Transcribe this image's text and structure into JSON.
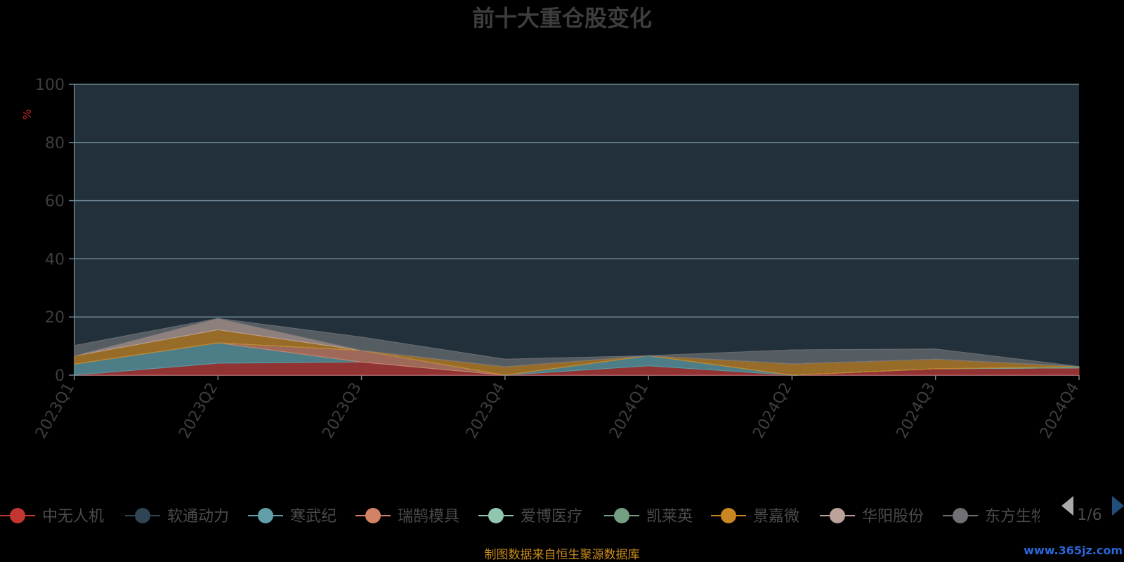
{
  "chart_data": {
    "type": "area",
    "title": "前十大重仓股变化",
    "ylabel": "%",
    "ylim": [
      0,
      100
    ],
    "yticks": [
      "0",
      "20",
      "40",
      "60",
      "80",
      "100"
    ],
    "categories": [
      "2023Q1",
      "2023Q2",
      "2023Q3",
      "2023Q4",
      "2024Q1",
      "2024Q2",
      "2024Q3",
      "2024Q4"
    ],
    "legend_position": "bottom",
    "legend_page": "1/6",
    "series": [
      {
        "name": "中无人机",
        "color": "#c23531",
        "values": [
          0,
          4.1,
          4.5,
          0,
          3.2,
          0,
          2.2,
          2.5
        ]
      },
      {
        "name": "软通动力",
        "color": "#2f4554",
        "values": [
          0,
          0,
          0,
          0,
          0,
          0,
          0,
          0
        ]
      },
      {
        "name": "寒武纪",
        "color": "#61a0a8",
        "values": [
          3.8,
          7.0,
          0,
          0,
          3.5,
          0,
          0,
          0
        ]
      },
      {
        "name": "瑞鹄模具",
        "color": "#d48265",
        "values": [
          0,
          0,
          4.0,
          0,
          0,
          0,
          0,
          0
        ]
      },
      {
        "name": "爱博医疗",
        "color": "#91c7ae",
        "values": [
          0,
          0,
          0,
          0,
          0,
          0,
          0,
          0
        ]
      },
      {
        "name": "凯莱英",
        "color": "#749f83",
        "values": [
          0,
          0,
          0,
          0,
          0,
          0,
          0,
          0.5
        ]
      },
      {
        "name": "景嘉微",
        "color": "#ca8622",
        "values": [
          2.8,
          4.5,
          0,
          2.9,
          0,
          3.9,
          3.3,
          0
        ]
      },
      {
        "name": "华阳股份",
        "color": "#bda29a",
        "values": [
          0,
          3.9,
          0,
          0,
          0,
          0,
          0,
          0
        ]
      },
      {
        "name": "东方生物",
        "color": "#6e7074",
        "values": [
          3.6,
          0,
          4.6,
          2.6,
          0,
          4.8,
          3.5,
          0
        ]
      }
    ]
  },
  "source_note": "制图数据来自恒生聚源数据库",
  "watermark": "www.365jz.com"
}
